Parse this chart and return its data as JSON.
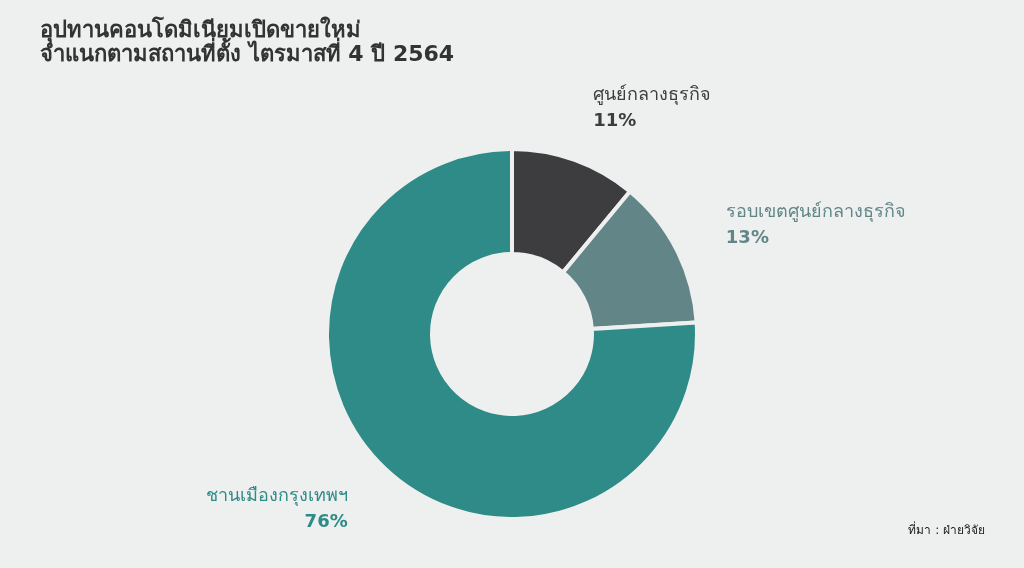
{
  "chart_data": {
    "type": "donut",
    "title": [
      "อุปทานคอนโดมิเนียมเปิดขายใหม่",
      "จำแนกตามสถานที่ตั้ง ไตรมาสที่ 4 ปี 2564"
    ],
    "categories": [
      "ศูนย์กลางธุรกิจ",
      "รอบเขตศูนย์กลางธุรกิจ",
      "ชานเมืองกรุงเทพฯ"
    ],
    "values": [
      11,
      13,
      76
    ],
    "colors": [
      "#3d3d3f",
      "#628688",
      "#2e8b87"
    ],
    "value_labels": [
      "11%",
      "13%",
      "76%"
    ],
    "annotations": [
      "ที่มา : ฝ่ายวิจัย"
    ]
  }
}
